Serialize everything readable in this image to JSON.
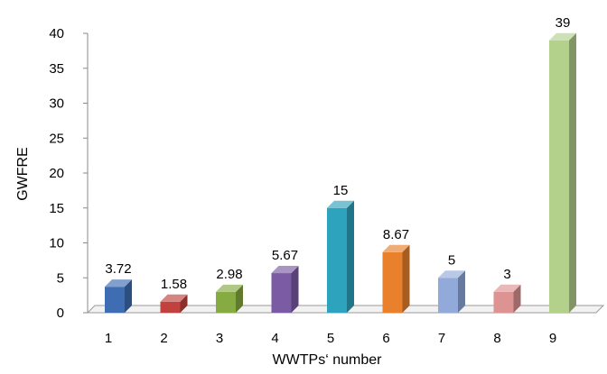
{
  "chart_data": {
    "type": "bar",
    "categories": [
      "1",
      "2",
      "3",
      "4",
      "5",
      "6",
      "7",
      "8",
      "9"
    ],
    "values": [
      3.72,
      1.58,
      2.98,
      5.67,
      15,
      8.67,
      5,
      3,
      39
    ],
    "data_labels": [
      "3.72",
      "1.58",
      "2.98",
      "5.67",
      "15",
      "8.67",
      "5",
      "3",
      "39"
    ],
    "title": "",
    "xlabel": "WWTPs‘ number",
    "ylabel": "GWFRE",
    "ylim": [
      0,
      40
    ],
    "yticks": [
      "0",
      "5",
      "10",
      "15",
      "20",
      "25",
      "30",
      "35",
      "40"
    ],
    "grid": false,
    "legend": "none",
    "colors": [
      "#3f6db3",
      "#c0413d",
      "#86ab43",
      "#7a5ba4",
      "#2ea3bd",
      "#e8802c",
      "#91aad9",
      "#dc9392",
      "#b4d18c"
    ]
  }
}
